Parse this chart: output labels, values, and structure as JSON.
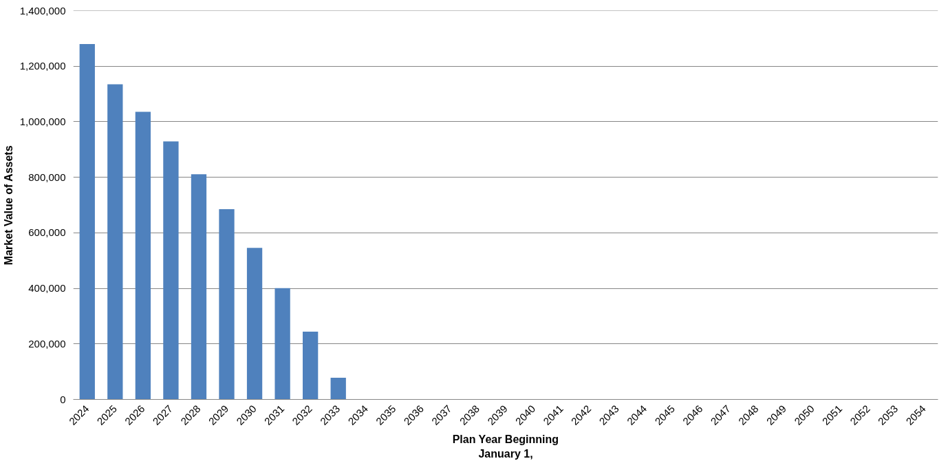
{
  "chart_data": {
    "type": "bar",
    "xlabel": "Plan Year Beginning\nJanuary 1,",
    "ylabel": "Market Value of Assets",
    "categories": [
      "2024",
      "2025",
      "2026",
      "2027",
      "2028",
      "2029",
      "2030",
      "2031",
      "2032",
      "2033",
      "2034",
      "2035",
      "2036",
      "2037",
      "2038",
      "2039",
      "2040",
      "2041",
      "2042",
      "2043",
      "2044",
      "2045",
      "2046",
      "2047",
      "2048",
      "2049",
      "2050",
      "2051",
      "2052",
      "2053",
      "2054"
    ],
    "values": [
      1280000,
      1135000,
      1036000,
      929000,
      811000,
      685000,
      546000,
      401000,
      244000,
      78000,
      0,
      0,
      0,
      0,
      0,
      0,
      0,
      0,
      0,
      0,
      0,
      0,
      0,
      0,
      0,
      0,
      0,
      0,
      0,
      0,
      0
    ],
    "color": "#4f81bd",
    "ylim": [
      0,
      1400000
    ],
    "yticks": [
      0,
      {
        "value": 200000,
        "label": "200,000"
      },
      {
        "value": 400000,
        "label": "400,000"
      },
      {
        "value": 600000,
        "label": "600,000"
      },
      {
        "value": 800000,
        "label": "800,000"
      },
      {
        "value": 1000000,
        "label": "1,000,000"
      },
      {
        "value": 1200000,
        "label": "1,200,000"
      },
      {
        "value": 1400000,
        "label": "1,400,000"
      }
    ],
    "grid": "y"
  }
}
